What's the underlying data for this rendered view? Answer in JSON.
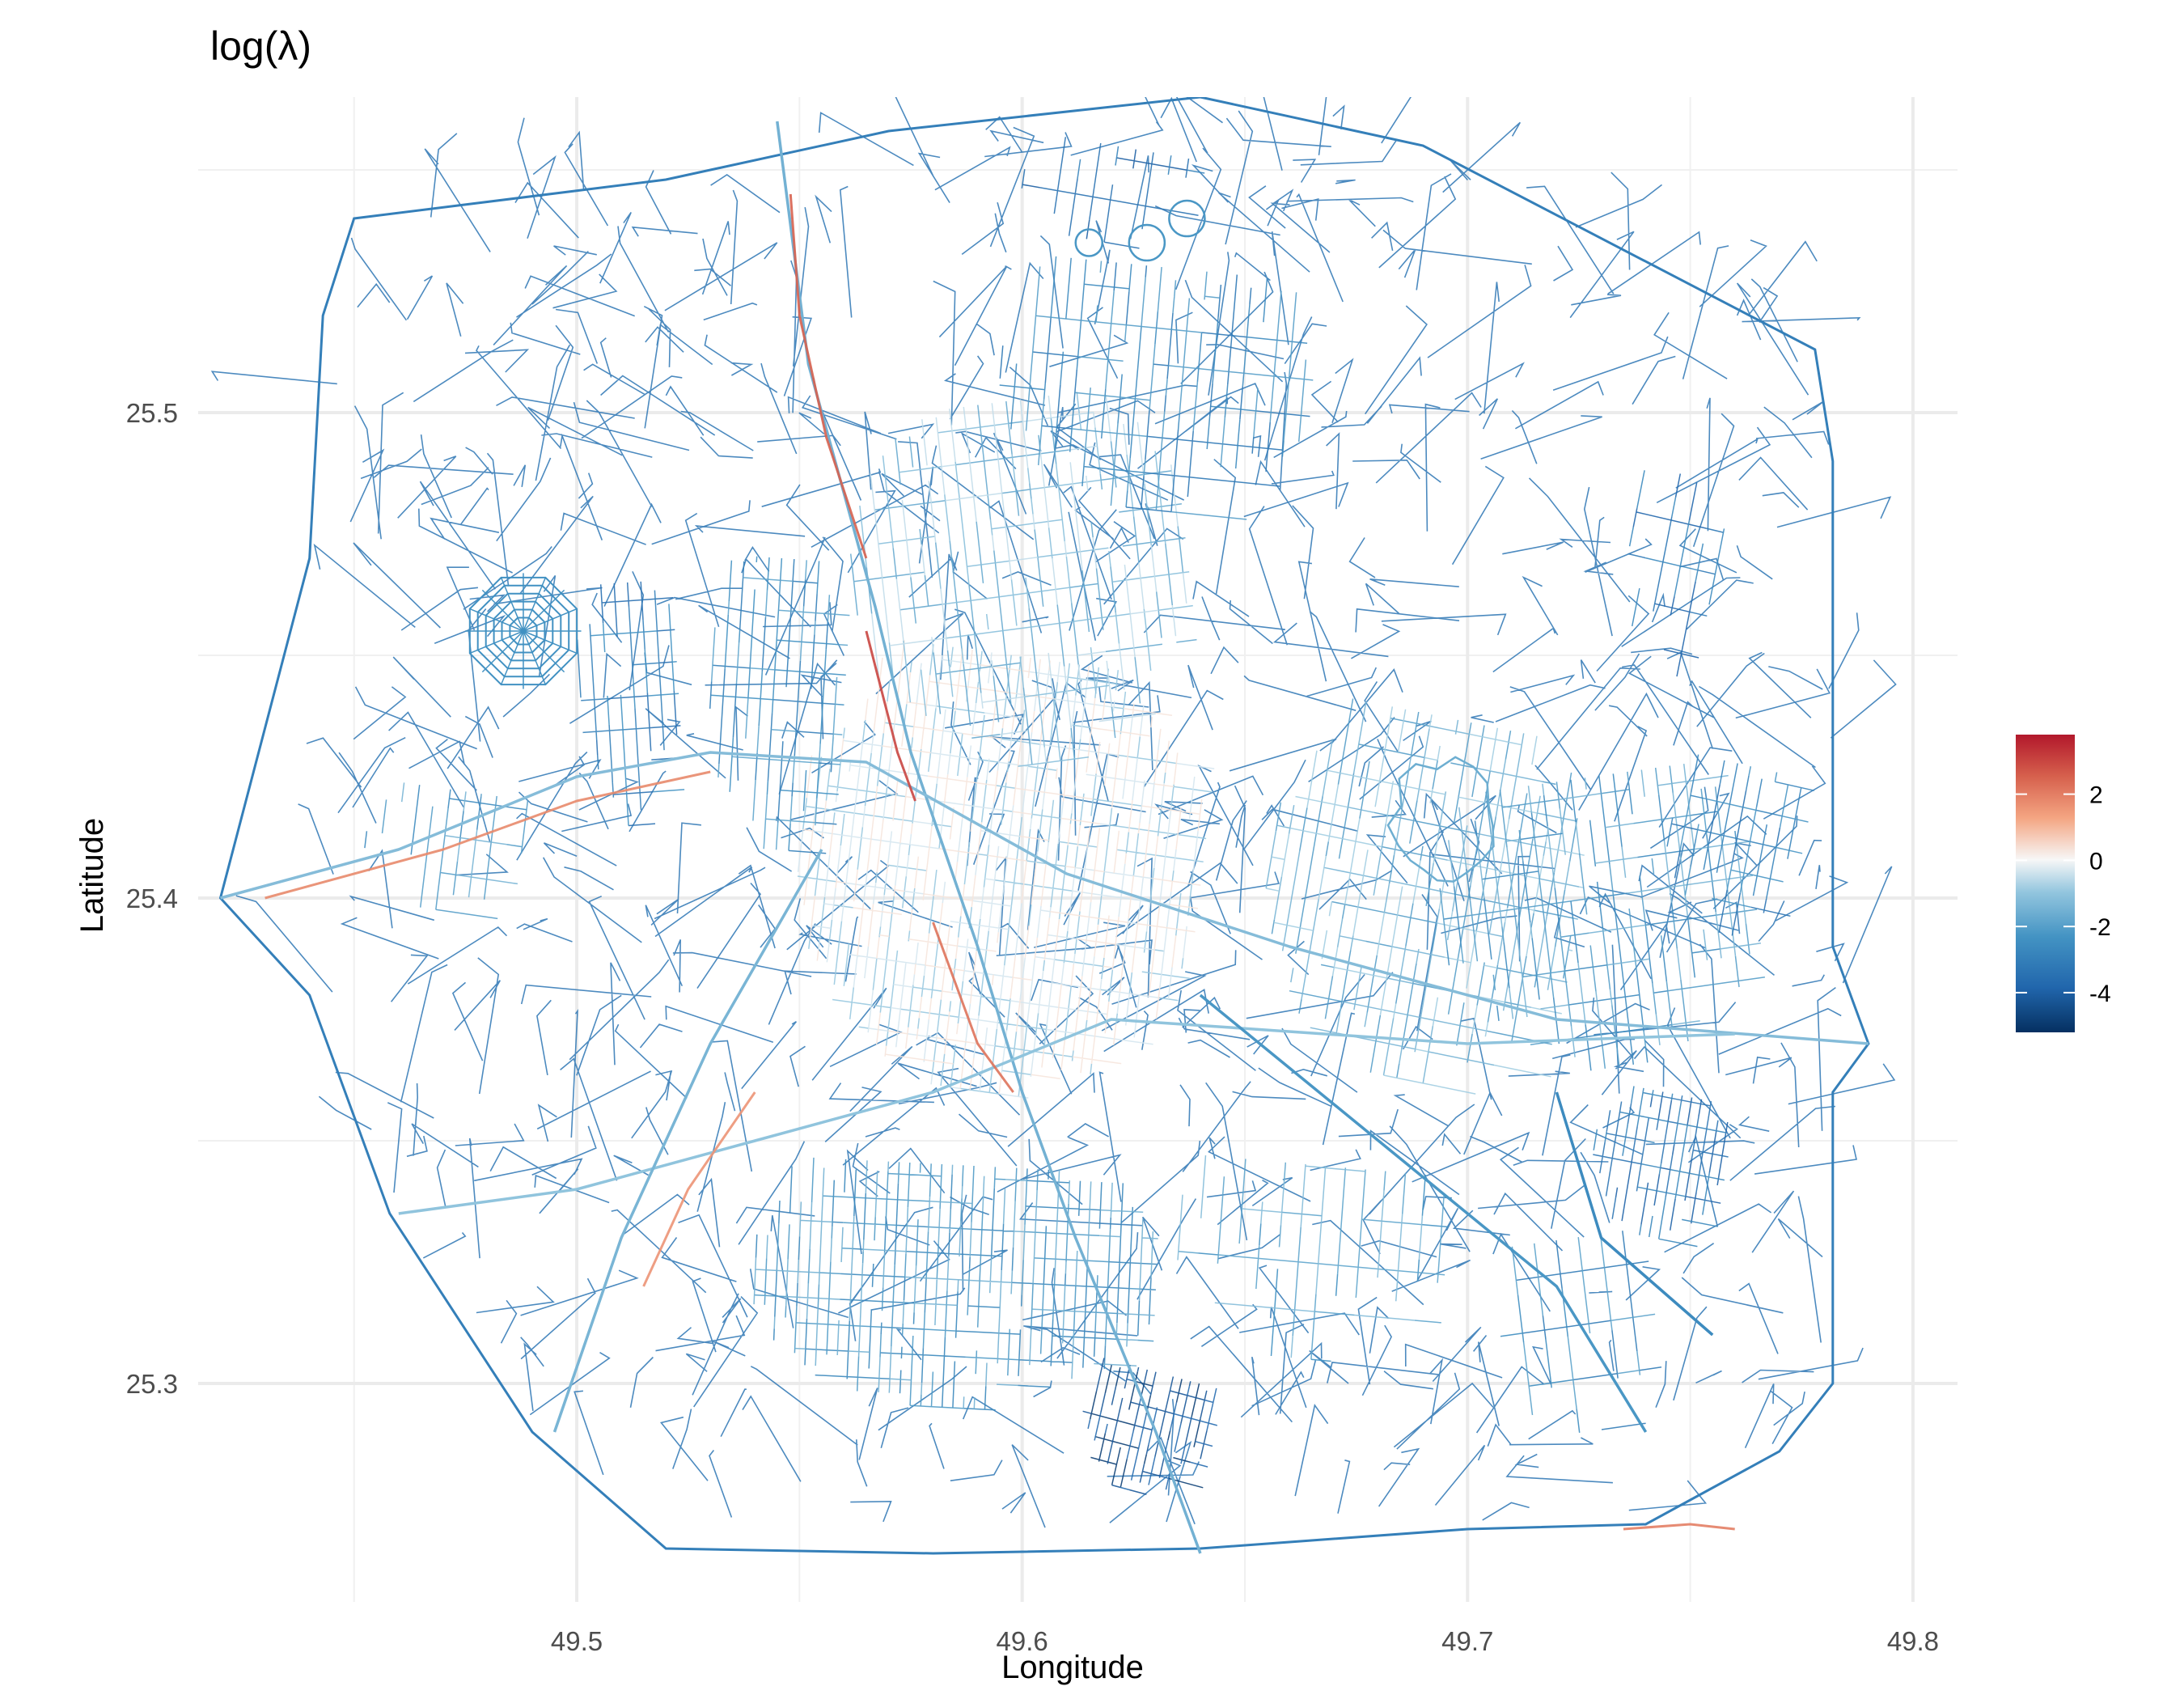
{
  "chart_data": {
    "type": "map",
    "title": "log(λ)",
    "xlabel": "Longitude",
    "ylabel": "Latitude",
    "xlim": [
      49.415,
      49.81
    ],
    "ylim": [
      25.255,
      25.565
    ],
    "x_ticks": [
      {
        "value": 49.5,
        "label": "49.5"
      },
      {
        "value": 49.6,
        "label": "49.6"
      },
      {
        "value": 49.7,
        "label": "49.7"
      },
      {
        "value": 49.8,
        "label": "49.8"
      }
    ],
    "y_ticks": [
      {
        "value": 25.3,
        "label": "25.3"
      },
      {
        "value": 25.4,
        "label": "25.4"
      },
      {
        "value": 25.5,
        "label": "25.5"
      }
    ],
    "minor_x": [
      49.45,
      49.55,
      49.65,
      49.75
    ],
    "minor_y": [
      25.35,
      25.45,
      25.55
    ],
    "grid": true,
    "legend": {
      "placement": "right",
      "range": [
        -5.2,
        3.8
      ],
      "ticks": [
        {
          "value": 2,
          "label": "2"
        },
        {
          "value": 0,
          "label": "0"
        },
        {
          "value": -2,
          "label": "-2"
        },
        {
          "value": -4,
          "label": "-4"
        }
      ],
      "colors": [
        "#053061",
        "#2166ac",
        "#4393c3",
        "#92c5de",
        "#f7f7f7",
        "#f4a582",
        "#d6604d",
        "#b2182b"
      ]
    },
    "ring_road": [
      [
        49.45,
        25.54
      ],
      [
        49.52,
        25.548
      ],
      [
        49.57,
        25.558
      ],
      [
        49.64,
        25.565
      ],
      [
        49.69,
        25.555
      ],
      [
        49.778,
        25.513
      ],
      [
        49.782,
        25.49
      ],
      [
        49.782,
        25.39
      ],
      [
        49.79,
        25.37
      ],
      [
        49.782,
        25.36
      ],
      [
        49.782,
        25.3
      ],
      [
        49.77,
        25.286
      ],
      [
        49.74,
        25.271
      ],
      [
        49.7,
        25.27
      ],
      [
        49.64,
        25.266
      ],
      [
        49.58,
        25.265
      ],
      [
        49.52,
        25.266
      ],
      [
        49.49,
        25.29
      ],
      [
        49.458,
        25.335
      ],
      [
        49.44,
        25.38
      ],
      [
        49.42,
        25.4
      ],
      [
        49.44,
        25.47
      ],
      [
        49.443,
        25.52
      ],
      [
        49.45,
        25.54
      ]
    ],
    "highways": [
      {
        "value": -1.5,
        "points": [
          [
            49.545,
            25.56
          ],
          [
            49.552,
            25.51
          ],
          [
            49.567,
            25.46
          ],
          [
            49.575,
            25.43
          ],
          [
            49.59,
            25.39
          ],
          [
            49.6,
            25.36
          ],
          [
            49.612,
            25.33
          ],
          [
            49.63,
            25.29
          ],
          [
            49.64,
            25.265
          ]
        ]
      },
      {
        "value": -1.2,
        "points": [
          [
            49.42,
            25.4
          ],
          [
            49.46,
            25.41
          ],
          [
            49.5,
            25.425
          ],
          [
            49.53,
            25.43
          ],
          [
            49.565,
            25.428
          ],
          [
            49.61,
            25.405
          ],
          [
            49.66,
            25.39
          ],
          [
            49.72,
            25.375
          ],
          [
            49.79,
            25.37
          ]
        ]
      },
      {
        "value": -1.0,
        "points": [
          [
            49.46,
            25.335
          ],
          [
            49.5,
            25.34
          ],
          [
            49.54,
            25.35
          ],
          [
            49.58,
            25.36
          ],
          [
            49.62,
            25.375
          ],
          [
            49.7,
            25.37
          ],
          [
            49.76,
            25.372
          ]
        ]
      },
      {
        "value": -1.4,
        "points": [
          [
            49.495,
            25.29
          ],
          [
            49.51,
            25.33
          ],
          [
            49.53,
            25.37
          ],
          [
            49.555,
            25.41
          ]
        ]
      },
      {
        "value": -2.2,
        "points": [
          [
            49.64,
            25.38
          ],
          [
            49.68,
            25.35
          ],
          [
            49.72,
            25.32
          ],
          [
            49.74,
            25.29
          ]
        ]
      },
      {
        "value": -2.6,
        "points": [
          [
            49.72,
            25.36
          ],
          [
            49.73,
            25.33
          ],
          [
            49.755,
            25.31
          ]
        ]
      }
    ],
    "hot_segments": [
      {
        "value": 2.5,
        "points": [
          [
            49.548,
            25.545
          ],
          [
            49.55,
            25.52
          ],
          [
            49.556,
            25.495
          ],
          [
            49.565,
            25.47
          ]
        ]
      },
      {
        "value": 3.0,
        "points": [
          [
            49.565,
            25.455
          ],
          [
            49.572,
            25.43
          ],
          [
            49.576,
            25.42
          ]
        ]
      },
      {
        "value": 1.8,
        "points": [
          [
            49.43,
            25.4
          ],
          [
            49.47,
            25.41
          ],
          [
            49.5,
            25.42
          ],
          [
            49.53,
            25.426
          ]
        ]
      },
      {
        "value": 2.2,
        "points": [
          [
            49.58,
            25.395
          ],
          [
            49.59,
            25.37
          ],
          [
            49.598,
            25.36
          ]
        ]
      },
      {
        "value": 1.6,
        "points": [
          [
            49.515,
            25.32
          ],
          [
            49.525,
            25.34
          ],
          [
            49.54,
            25.36
          ]
        ]
      },
      {
        "value": 2.0,
        "points": [
          [
            49.735,
            25.27
          ],
          [
            49.75,
            25.271
          ],
          [
            49.76,
            25.27
          ]
        ]
      }
    ],
    "districts": [
      {
        "value": -0.3,
        "center": [
          49.595,
          25.405
        ],
        "size": [
          0.09,
          0.09
        ],
        "spacing": 0.0022
      },
      {
        "value": -1.1,
        "center": [
          49.6,
          25.465
        ],
        "size": [
          0.075,
          0.075
        ],
        "spacing": 0.0032
      },
      {
        "value": -2.6,
        "center": [
          49.63,
          25.505
        ],
        "size": [
          0.07,
          0.05
        ],
        "spacing": 0.0034
      },
      {
        "value": -1.4,
        "center": [
          49.69,
          25.4
        ],
        "size": [
          0.07,
          0.075
        ],
        "spacing": 0.003
      },
      {
        "value": -2.0,
        "center": [
          49.73,
          25.395
        ],
        "size": [
          0.07,
          0.06
        ],
        "spacing": 0.0032
      },
      {
        "value": -2.1,
        "center": [
          49.585,
          25.32
        ],
        "size": [
          0.09,
          0.05
        ],
        "spacing": 0.0024
      },
      {
        "value": -4.2,
        "center": [
          49.628,
          25.29
        ],
        "size": [
          0.03,
          0.025
        ],
        "spacing": 0.002
      },
      {
        "value": -3.3,
        "center": [
          49.743,
          25.345
        ],
        "size": [
          0.03,
          0.03
        ],
        "spacing": 0.0022
      },
      {
        "value": -2.4,
        "center": [
          49.545,
          25.44
        ],
        "size": [
          0.03,
          0.06
        ],
        "spacing": 0.0028
      },
      {
        "value": -1.8,
        "center": [
          49.665,
          25.325
        ],
        "size": [
          0.06,
          0.04
        ],
        "spacing": 0.0045
      },
      {
        "value": -2.9,
        "center": [
          49.512,
          25.44
        ],
        "size": [
          0.022,
          0.05
        ],
        "spacing": 0.003
      },
      {
        "value": -2.8,
        "center": [
          49.76,
          25.41
        ],
        "size": [
          0.03,
          0.035
        ],
        "spacing": 0.003
      },
      {
        "value": -3.2,
        "center": [
          49.745,
          25.465
        ],
        "size": [
          0.02,
          0.045
        ],
        "spacing": 0.004
      },
      {
        "value": -2.5,
        "center": [
          49.725,
          25.31
        ],
        "size": [
          0.035,
          0.04
        ],
        "spacing": 0.005
      },
      {
        "value": -2.0,
        "center": [
          49.47,
          25.41
        ],
        "size": [
          0.035,
          0.025
        ],
        "spacing": 0.0035
      },
      {
        "value": -3.4,
        "center": [
          49.62,
          25.545
        ],
        "size": [
          0.04,
          0.02
        ],
        "spacing": 0.004
      }
    ],
    "features": [
      {
        "kind": "octagon",
        "value": -2.4,
        "center": [
          49.488,
          25.455
        ],
        "radius": 0.013
      },
      {
        "kind": "circle",
        "value": -2.2,
        "center": [
          49.637,
          25.54
        ],
        "radius": 0.004
      },
      {
        "kind": "circle",
        "value": -2.2,
        "center": [
          49.628,
          25.535
        ],
        "radius": 0.004
      },
      {
        "kind": "circle",
        "value": -2.2,
        "center": [
          49.615,
          25.535
        ],
        "radius": 0.003
      },
      {
        "kind": "blob",
        "value": -1.6,
        "center": [
          49.695,
          25.415
        ],
        "radius": 0.012
      }
    ]
  }
}
